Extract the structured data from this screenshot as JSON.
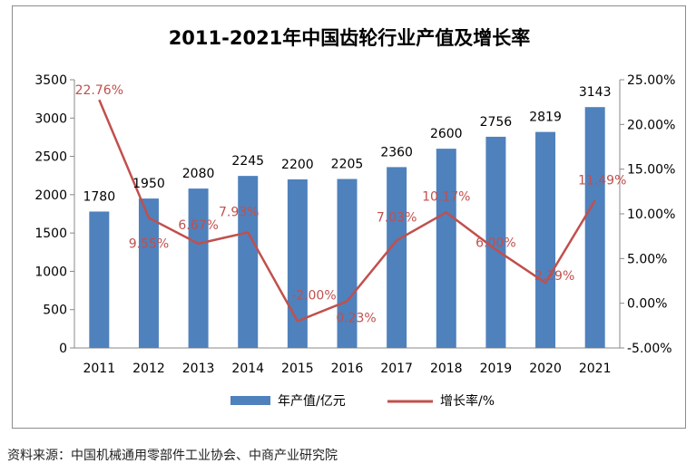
{
  "source_note": "资料来源：中国机械通用零部件工业协会、中商产业研究院",
  "chart_data": {
    "type": "bar",
    "title": "2011-2021年中国齿轮行业产值及增长率",
    "categories": [
      "2011",
      "2012",
      "2013",
      "2014",
      "2015",
      "2016",
      "2017",
      "2018",
      "2019",
      "2020",
      "2021"
    ],
    "series": [
      {
        "name": "年产值/亿元",
        "type": "bar",
        "axis": "left",
        "color": "#4f81bd",
        "values": [
          1780,
          1950,
          2080,
          2245,
          2200,
          2205,
          2360,
          2600,
          2756,
          2819,
          3143
        ],
        "labels": [
          "1780",
          "1950",
          "2080",
          "2245",
          "2200",
          "2205",
          "2360",
          "2600",
          "2756",
          "2819",
          "3143"
        ]
      },
      {
        "name": "增长率/%",
        "type": "line",
        "axis": "right",
        "color": "#c0504d",
        "values": [
          22.76,
          9.55,
          6.67,
          7.93,
          -2.0,
          0.23,
          7.03,
          10.17,
          6.0,
          2.29,
          11.49
        ],
        "labels": [
          "22.76%",
          "9.55%",
          "6.67%",
          "7.93%",
          "-2.00%",
          "0.23%",
          "7.03%",
          "10.17%",
          "6.00%",
          "2.29%",
          "11.49%"
        ]
      }
    ],
    "y_left": {
      "min": 0,
      "max": 3500,
      "ticks": [
        "0",
        "500",
        "1000",
        "1500",
        "2000",
        "2500",
        "3000",
        "3500"
      ]
    },
    "y_right": {
      "min": -5,
      "max": 25,
      "ticks": [
        "-5.00%",
        "0.00%",
        "5.00%",
        "10.00%",
        "15.00%",
        "20.00%",
        "25.00%"
      ]
    },
    "grid": false,
    "legend_position": "bottom"
  }
}
